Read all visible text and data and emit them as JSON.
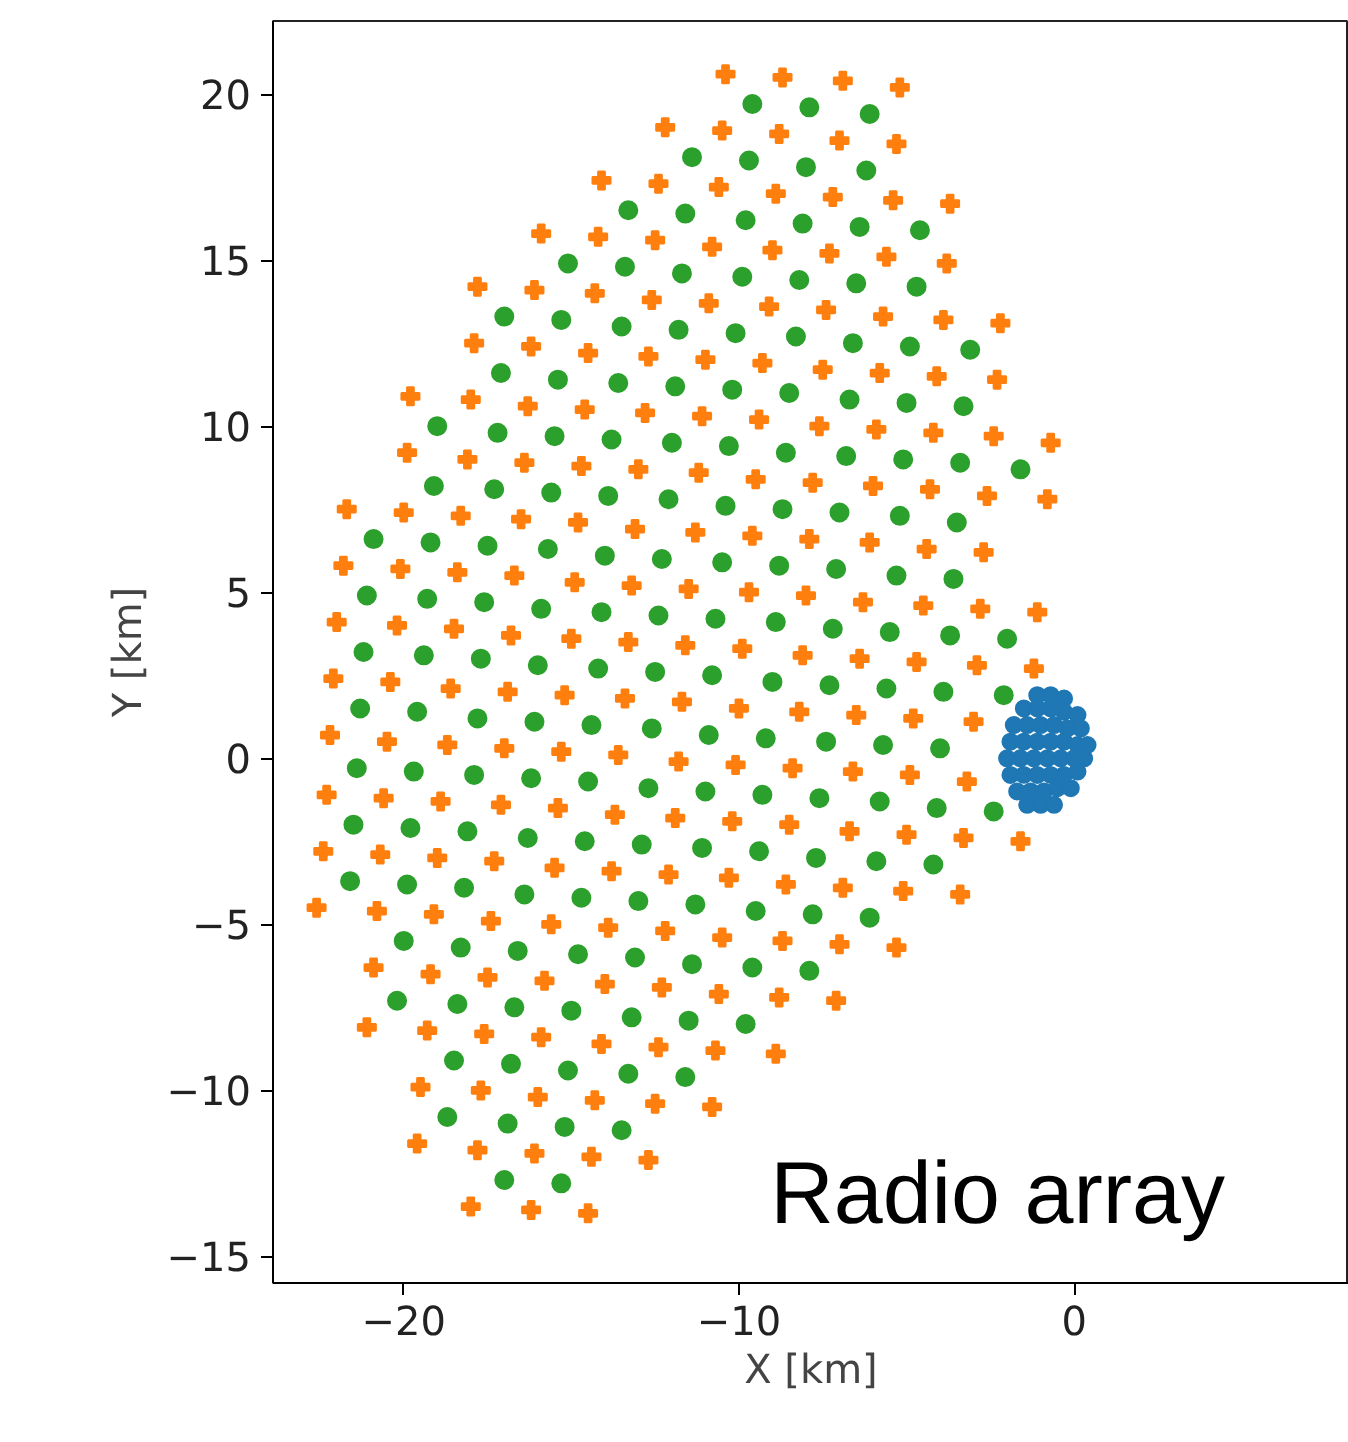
{
  "chart_data": {
    "type": "scatter",
    "xlabel": "X [km]",
    "ylabel": "Y [km]",
    "xlim": [
      -23.9,
      8.2
    ],
    "ylim": [
      -15.8,
      22.2
    ],
    "xticks": [
      {
        "value": -20,
        "label": "−20"
      },
      {
        "value": -10,
        "label": "−10"
      },
      0
    ],
    "yticks": [
      {
        "value": -15,
        "label": "−15"
      },
      {
        "value": -10,
        "label": "−10"
      },
      {
        "value": -5,
        "label": "−5"
      },
      0,
      5,
      10,
      15,
      20
    ],
    "grid": false,
    "annotations": [
      "Radio array"
    ],
    "series": [
      {
        "color": "#ff7f0e",
        "marker": "cross",
        "x": [
          -10.4,
          -8.7,
          -6.9,
          -5.2,
          -12.2,
          -10.5,
          -8.8,
          -7.0,
          -5.3,
          -14.1,
          -12.4,
          -10.6,
          -8.9,
          -7.2,
          -5.4,
          -3.7,
          -15.9,
          -14.2,
          -12.5,
          -10.8,
          -9.0,
          -7.3,
          -5.6,
          -3.8,
          -17.8,
          -16.1,
          -14.3,
          -12.6,
          -10.9,
          -9.1,
          -7.4,
          -5.7,
          -3.9,
          -2.2,
          -17.9,
          -16.2,
          -14.5,
          -12.7,
          -11.0,
          -9.3,
          -7.5,
          -5.8,
          -4.1,
          -2.3,
          -19.8,
          -18.0,
          -16.3,
          -14.6,
          -12.8,
          -11.1,
          -9.4,
          -7.6,
          -5.9,
          -4.2,
          -2.4,
          -0.7,
          -19.9,
          -18.1,
          -16.4,
          -14.7,
          -13.0,
          -11.2,
          -9.5,
          -7.8,
          -6.0,
          -4.3,
          -2.6,
          -0.8,
          -21.7,
          -20.0,
          -18.3,
          -16.5,
          -14.8,
          -13.1,
          -11.3,
          -9.6,
          -7.9,
          -6.1,
          -4.4,
          -2.7,
          -21.8,
          -20.1,
          -18.4,
          -16.7,
          -14.9,
          -13.2,
          -11.5,
          -9.7,
          -8.0,
          -6.3,
          -4.5,
          -2.8,
          -1.1,
          -22.0,
          -20.2,
          -18.5,
          -16.8,
          -15.0,
          -13.3,
          -11.6,
          -9.9,
          -8.1,
          -6.4,
          -4.7,
          -2.9,
          -1.2,
          -22.1,
          -20.4,
          -18.6,
          -16.9,
          -15.2,
          -13.4,
          -11.7,
          -10.0,
          -8.2,
          -6.5,
          -4.8,
          -3.0,
          -22.2,
          -20.5,
          -18.7,
          -17.0,
          -15.3,
          -13.6,
          -11.8,
          -10.1,
          -8.4,
          -6.6,
          -4.9,
          -3.2,
          -22.3,
          -20.6,
          -18.9,
          -17.1,
          -15.4,
          -13.7,
          -11.9,
          -10.2,
          -8.5,
          -6.7,
          -5.0,
          -3.3,
          -1.6,
          -22.4,
          -20.7,
          -19.0,
          -17.3,
          -15.5,
          -13.8,
          -12.1,
          -10.3,
          -8.6,
          -6.9,
          -5.1,
          -3.4,
          -22.6,
          -20.8,
          -19.1,
          -17.4,
          -15.6,
          -13.9,
          -12.2,
          -10.5,
          -8.7,
          -7.0,
          -5.3,
          -20.9,
          -19.2,
          -17.5,
          -15.8,
          -14.0,
          -12.3,
          -10.6,
          -8.8,
          -7.1,
          -21.1,
          -19.3,
          -17.6,
          -15.9,
          -14.1,
          -12.4,
          -10.7,
          -8.9,
          -19.5,
          -17.7,
          -16.0,
          -14.3,
          -12.5,
          -10.8,
          -19.6,
          -17.8,
          -16.1,
          -14.4,
          -12.7,
          -18.0,
          -16.2,
          -14.5
        ],
        "values": [
          20.6,
          20.5,
          20.4,
          20.2,
          19.0,
          18.9,
          18.8,
          18.6,
          18.5,
          17.4,
          17.3,
          17.2,
          17.0,
          16.9,
          16.8,
          16.7,
          15.8,
          15.7,
          15.6,
          15.4,
          15.3,
          15.2,
          15.1,
          14.9,
          14.2,
          14.1,
          14.0,
          13.8,
          13.7,
          13.6,
          13.5,
          13.3,
          13.2,
          13.1,
          12.5,
          12.4,
          12.2,
          12.1,
          12.0,
          11.9,
          11.7,
          11.6,
          11.5,
          11.4,
          10.9,
          10.8,
          10.6,
          10.5,
          10.4,
          10.3,
          10.2,
          10.0,
          9.9,
          9.8,
          9.7,
          9.5,
          9.2,
          9.0,
          8.9,
          8.8,
          8.7,
          8.6,
          8.4,
          8.3,
          8.2,
          8.1,
          7.9,
          7.8,
          7.5,
          7.4,
          7.3,
          7.2,
          7.1,
          6.9,
          6.8,
          6.7,
          6.6,
          6.5,
          6.3,
          6.2,
          5.8,
          5.7,
          5.6,
          5.5,
          5.3,
          5.2,
          5.1,
          5.0,
          4.9,
          4.7,
          4.6,
          4.5,
          4.4,
          4.1,
          4.0,
          3.9,
          3.7,
          3.6,
          3.5,
          3.4,
          3.3,
          3.1,
          3.0,
          2.9,
          2.8,
          2.7,
          2.4,
          2.3,
          2.1,
          2.0,
          1.9,
          1.8,
          1.7,
          1.5,
          1.4,
          1.3,
          1.2,
          1.1,
          0.7,
          0.5,
          0.4,
          0.3,
          0.2,
          0.1,
          -0.1,
          -0.2,
          -0.3,
          -0.4,
          -0.5,
          -0.7,
          -1.1,
          -1.2,
          -1.3,
          -1.4,
          -1.5,
          -1.7,
          -1.8,
          -1.9,
          -2.0,
          -2.2,
          -2.3,
          -2.4,
          -2.5,
          -2.8,
          -2.9,
          -3.0,
          -3.1,
          -3.3,
          -3.4,
          -3.5,
          -3.6,
          -3.8,
          -3.9,
          -4.0,
          -4.1,
          -4.5,
          -4.6,
          -4.7,
          -4.9,
          -5.0,
          -5.1,
          -5.2,
          -5.4,
          -5.5,
          -5.6,
          -5.7,
          -6.3,
          -6.5,
          -6.6,
          -6.7,
          -6.8,
          -6.9,
          -7.1,
          -7.2,
          -7.3,
          -8.1,
          -8.2,
          -8.3,
          -8.4,
          -8.6,
          -8.7,
          -8.8,
          -8.9,
          -9.9,
          -10.0,
          -10.2,
          -10.3,
          -10.4,
          -10.5,
          -11.6,
          -11.8,
          -11.9,
          -12.0,
          -12.1,
          -13.5,
          -13.6,
          -13.7
        ]
      },
      {
        "color": "#2ca02c",
        "marker": "circle",
        "x": [
          -9.6,
          -7.9,
          -6.1,
          -11.4,
          -9.7,
          -8.0,
          -6.2,
          -13.3,
          -11.6,
          -9.8,
          -8.1,
          -6.4,
          -4.6,
          -15.1,
          -13.4,
          -11.7,
          -9.9,
          -8.2,
          -6.5,
          -4.7,
          -17.0,
          -15.3,
          -13.5,
          -11.8,
          -10.1,
          -8.3,
          -6.6,
          -4.9,
          -3.1,
          -17.1,
          -15.4,
          -13.6,
          -11.9,
          -10.2,
          -8.5,
          -6.7,
          -5.0,
          -3.3,
          -19.0,
          -17.2,
          -15.5,
          -13.8,
          -12.0,
          -10.3,
          -8.6,
          -6.8,
          -5.1,
          -3.4,
          -1.6,
          -19.1,
          -17.3,
          -15.6,
          -13.9,
          -12.1,
          -10.4,
          -8.7,
          -7.0,
          -5.2,
          -3.5,
          -20.9,
          -19.2,
          -17.5,
          -15.7,
          -14.0,
          -12.3,
          -10.5,
          -8.8,
          -7.1,
          -5.3,
          -3.6,
          -21.1,
          -19.3,
          -17.6,
          -15.9,
          -14.1,
          -12.4,
          -10.7,
          -8.9,
          -7.2,
          -5.5,
          -3.7,
          -2.0,
          -21.2,
          -19.4,
          -17.7,
          -16.0,
          -14.2,
          -12.5,
          -10.8,
          -9.0,
          -7.3,
          -5.6,
          -3.9,
          -2.1,
          -21.3,
          -19.6,
          -17.8,
          -16.1,
          -14.4,
          -12.6,
          -10.9,
          -9.2,
          -7.4,
          -5.7,
          -4.0,
          -21.4,
          -19.7,
          -17.9,
          -16.2,
          -14.5,
          -12.7,
          -11.0,
          -9.3,
          -7.6,
          -5.8,
          -4.1,
          -2.4,
          -21.5,
          -19.8,
          -18.1,
          -16.3,
          -14.6,
          -12.9,
          -11.1,
          -9.4,
          -7.7,
          -5.9,
          -4.2,
          -21.6,
          -19.9,
          -18.2,
          -16.4,
          -14.7,
          -13.0,
          -11.3,
          -9.5,
          -7.8,
          -6.1,
          -20.0,
          -18.3,
          -16.6,
          -14.8,
          -13.1,
          -11.4,
          -9.6,
          -7.9,
          -20.2,
          -18.4,
          -16.7,
          -15.0,
          -13.2,
          -11.5,
          -9.8,
          -18.5,
          -16.8,
          -15.1,
          -13.3,
          -11.6,
          -18.7,
          -16.9,
          -15.2,
          -13.5,
          -17.0,
          -15.3
        ],
        "values": [
          19.7,
          19.6,
          19.4,
          18.1,
          18.0,
          17.8,
          17.7,
          16.5,
          16.4,
          16.2,
          16.1,
          16.0,
          15.9,
          14.9,
          14.8,
          14.6,
          14.5,
          14.4,
          14.3,
          14.2,
          13.3,
          13.2,
          13.0,
          12.9,
          12.8,
          12.7,
          12.5,
          12.4,
          12.3,
          11.6,
          11.4,
          11.3,
          11.2,
          11.1,
          11.0,
          10.8,
          10.7,
          10.6,
          10.0,
          9.8,
          9.7,
          9.6,
          9.5,
          9.4,
          9.2,
          9.1,
          9.0,
          8.9,
          8.7,
          8.2,
          8.1,
          8.0,
          7.9,
          7.8,
          7.6,
          7.5,
          7.4,
          7.3,
          7.1,
          6.6,
          6.5,
          6.4,
          6.3,
          6.1,
          6.0,
          5.9,
          5.8,
          5.7,
          5.5,
          5.4,
          4.9,
          4.8,
          4.7,
          4.5,
          4.4,
          4.3,
          4.2,
          4.1,
          3.9,
          3.8,
          3.7,
          3.6,
          3.2,
          3.1,
          3.0,
          2.8,
          2.7,
          2.6,
          2.5,
          2.3,
          2.2,
          2.1,
          2.0,
          1.9,
          1.5,
          1.4,
          1.2,
          1.1,
          1.0,
          0.9,
          0.7,
          0.6,
          0.5,
          0.4,
          0.3,
          -0.3,
          -0.4,
          -0.5,
          -0.6,
          -0.7,
          -0.9,
          -1.0,
          -1.1,
          -1.2,
          -1.3,
          -1.5,
          -1.6,
          -2.0,
          -2.1,
          -2.2,
          -2.4,
          -2.5,
          -2.6,
          -2.7,
          -2.8,
          -3.0,
          -3.1,
          -3.2,
          -3.7,
          -3.8,
          -3.9,
          -4.1,
          -4.2,
          -4.3,
          -4.4,
          -4.6,
          -4.7,
          -4.8,
          -5.5,
          -5.7,
          -5.8,
          -5.9,
          -6.0,
          -6.2,
          -6.3,
          -6.4,
          -7.3,
          -7.4,
          -7.5,
          -7.6,
          -7.8,
          -7.9,
          -8.0,
          -9.1,
          -9.2,
          -9.4,
          -9.5,
          -9.6,
          -10.8,
          -11.0,
          -11.1,
          -11.2,
          -12.7,
          -12.8
        ]
      },
      {
        "color": "#1f77b4",
        "marker": "circle",
        "x": [
          -1.1,
          -0.7,
          -0.3,
          -1.5,
          -1.1,
          -0.7,
          -0.3,
          0.1,
          -1.8,
          -1.4,
          -1.0,
          -0.6,
          -0.2,
          0.2,
          -1.9,
          -1.5,
          -1.1,
          -0.7,
          -0.3,
          0.1,
          0.4,
          -2.0,
          -1.6,
          -1.2,
          -0.8,
          -0.4,
          0.0,
          0.3,
          -1.9,
          -1.5,
          -1.1,
          -0.7,
          -0.3,
          0.1,
          -1.7,
          -1.3,
          -0.9,
          -0.5,
          -0.1,
          -1.4,
          -1.0,
          -0.6
        ],
        "values": [
          1.9,
          1.9,
          1.8,
          1.5,
          1.5,
          1.5,
          1.4,
          1.3,
          1.0,
          1.0,
          1.0,
          1.0,
          0.9,
          0.9,
          0.5,
          0.5,
          0.5,
          0.5,
          0.5,
          0.4,
          0.4,
          0.0,
          0.0,
          0.0,
          0.0,
          0.0,
          0.0,
          0.0,
          -0.5,
          -0.5,
          -0.5,
          -0.5,
          -0.5,
          -0.4,
          -1.0,
          -1.0,
          -1.0,
          -0.9,
          -0.9,
          -1.4,
          -1.4,
          -1.4
        ]
      }
    ]
  }
}
